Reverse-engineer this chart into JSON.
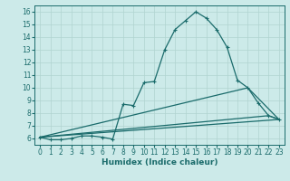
{
  "xlabel": "Humidex (Indice chaleur)",
  "ylabel": "",
  "background_color": "#cceae9",
  "line_color": "#1a6b6b",
  "grid_color": "#b0d4d0",
  "xlim": [
    -0.5,
    23.5
  ],
  "ylim": [
    5.5,
    16.5
  ],
  "xticks": [
    0,
    1,
    2,
    3,
    4,
    5,
    6,
    7,
    8,
    9,
    10,
    11,
    12,
    13,
    14,
    15,
    16,
    17,
    18,
    19,
    20,
    21,
    22,
    23
  ],
  "yticks": [
    6,
    7,
    8,
    9,
    10,
    11,
    12,
    13,
    14,
    15,
    16
  ],
  "series": [
    {
      "x": [
        0,
        1,
        2,
        3,
        4,
        5,
        6,
        7,
        8,
        9,
        10,
        11,
        12,
        13,
        14,
        15,
        16,
        17,
        18,
        19,
        20,
        21,
        22,
        23
      ],
      "y": [
        6.1,
        5.9,
        5.9,
        6.0,
        6.2,
        6.2,
        6.1,
        5.95,
        8.7,
        8.6,
        10.4,
        10.5,
        13.0,
        14.6,
        15.3,
        16.0,
        15.5,
        14.6,
        13.2,
        10.6,
        10.0,
        8.8,
        7.8,
        7.5
      ],
      "marker": true
    },
    {
      "x": [
        0,
        23
      ],
      "y": [
        6.1,
        7.5
      ],
      "marker": false
    },
    {
      "x": [
        0,
        20,
        23
      ],
      "y": [
        6.1,
        10.0,
        7.5
      ],
      "marker": false
    },
    {
      "x": [
        0,
        22,
        23
      ],
      "y": [
        6.1,
        7.8,
        7.5
      ],
      "marker": false
    }
  ],
  "xlabel_fontsize": 6.5,
  "xlabel_fontweight": "bold",
  "tick_fontsize": 5.5,
  "linewidth": 0.9,
  "markersize": 3.5
}
